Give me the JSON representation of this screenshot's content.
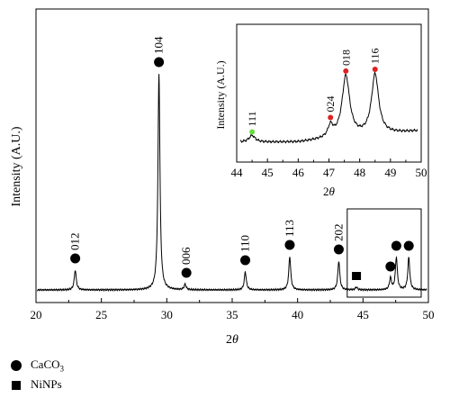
{
  "chart_data": [
    {
      "type": "line",
      "role": "main",
      "xlabel": "2θ",
      "ylabel": "Intensity (A.U.)",
      "xlim": [
        20,
        50
      ],
      "x_ticks": [
        20,
        25,
        30,
        35,
        40,
        45,
        50
      ],
      "y_ticks": [],
      "baseline": 3,
      "series": [
        {
          "peaks": [
            {
              "x": 23.0,
              "height": 22
            },
            {
              "x": 29.4,
              "height": 240
            },
            {
              "x": 31.4,
              "height": 6
            },
            {
              "x": 36.0,
              "height": 20
            },
            {
              "x": 39.4,
              "height": 37
            },
            {
              "x": 43.15,
              "height": 32
            },
            {
              "x": 44.5,
              "height": 3
            },
            {
              "x": 47.1,
              "height": 13
            },
            {
              "x": 47.55,
              "height": 36
            },
            {
              "x": 48.5,
              "height": 36
            }
          ]
        }
      ],
      "annotations": [
        {
          "label": "012",
          "x": 23.0,
          "marker": "circle",
          "height": 22
        },
        {
          "label": "104",
          "x": 29.4,
          "marker": "circle",
          "height": 240
        },
        {
          "label": "006",
          "x": 31.5,
          "marker": "circle",
          "height": 6
        },
        {
          "label": "110",
          "x": 36.0,
          "marker": "circle",
          "height": 20
        },
        {
          "label": "113",
          "x": 39.4,
          "marker": "circle",
          "height": 37
        },
        {
          "label": "202",
          "x": 43.15,
          "marker": "circle",
          "height": 32
        },
        {
          "label": "",
          "x": 44.5,
          "marker": "square",
          "height": 3
        },
        {
          "label": "",
          "x": 47.1,
          "marker": "circle",
          "height": 13
        },
        {
          "label": "",
          "x": 47.55,
          "marker": "circle",
          "height": 36
        },
        {
          "label": "",
          "x": 48.5,
          "marker": "circle",
          "height": 36
        }
      ],
      "zoom_box_x": [
        44,
        50
      ]
    },
    {
      "type": "line",
      "role": "inset",
      "xlabel": "2θ",
      "ylabel": "Intensity (A.U.)",
      "xlim": [
        44,
        50
      ],
      "x_ticks": [
        44,
        45,
        46,
        47,
        48,
        49,
        50
      ],
      "y_ticks": [],
      "baseline": 5,
      "series": [
        {
          "peaks": [
            {
              "x": 44.5,
              "height": 7,
              "width": 0.12
            },
            {
              "x": 47.05,
              "height": 12,
              "width": 0.1
            },
            {
              "x": 47.55,
              "height": 64,
              "width": 0.15
            },
            {
              "x": 48.5,
              "height": 63,
              "width": 0.14
            }
          ]
        }
      ],
      "annotations": [
        {
          "label": "111",
          "x": 44.5,
          "color": "#66dd44"
        },
        {
          "label": "024",
          "x": 47.05,
          "color": "#dd2222"
        },
        {
          "label": "018",
          "x": 47.55,
          "color": "#dd2222"
        },
        {
          "label": "116",
          "x": 48.5,
          "color": "#dd2222"
        }
      ]
    }
  ],
  "legend": [
    {
      "marker": "circle",
      "label": "CaCO",
      "subscript": "3"
    },
    {
      "marker": "square",
      "label": "NiNPs",
      "subscript": ""
    }
  ]
}
